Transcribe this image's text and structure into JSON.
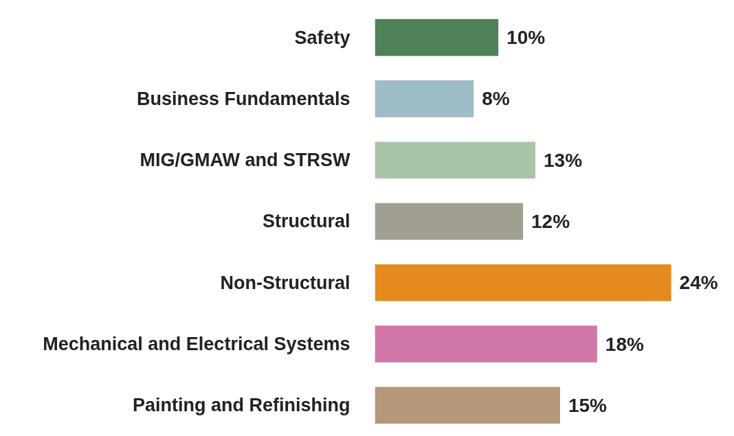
{
  "chart_data": {
    "type": "bar",
    "orientation": "horizontal",
    "categories": [
      "Safety",
      "Business Fundamentals",
      "MIG/GMAW and STRSW",
      "Structural",
      "Non-Structural",
      "Mechanical and Electrical Systems",
      "Painting and Refinishing"
    ],
    "values": [
      10,
      8,
      13,
      12,
      24,
      18,
      15
    ],
    "colors": [
      "#4f8158",
      "#9dbcc6",
      "#a9c5a9",
      "#a19f92",
      "#e58a1f",
      "#d076a6",
      "#b5977a"
    ],
    "value_labels": [
      "10%",
      "8%",
      "13%",
      "12%",
      "24%",
      "18%",
      "15%"
    ],
    "grid": false
  }
}
